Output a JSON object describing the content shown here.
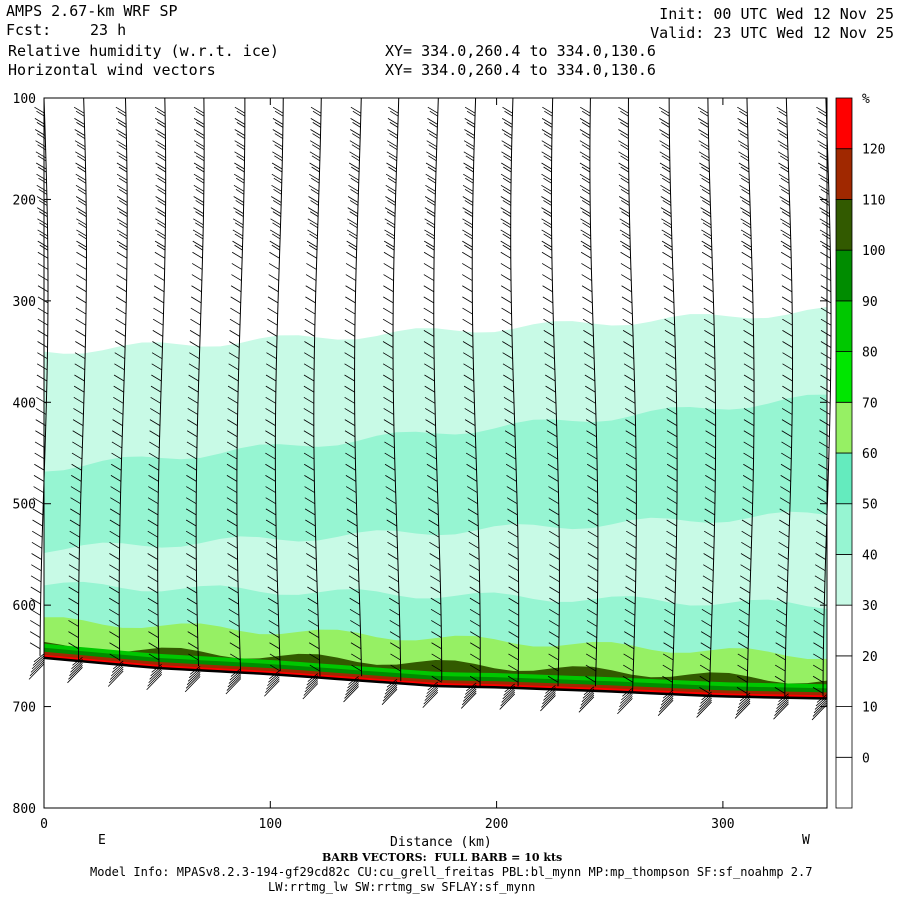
{
  "header": {
    "model": "AMPS 2.67-km WRF SP",
    "forecast_label": "Fcst:",
    "forecast_hours": "23 h",
    "field1": "Relative humidity (w.r.t. ice)",
    "field2": "Horizontal wind vectors",
    "xy1": "XY= 334.0,260.4 to 334.0,130.6",
    "xy2": "XY= 334.0,260.4 to 334.0,130.6",
    "init": "Init: 00 UTC Wed 12 Nov 25",
    "valid": "Valid: 23 UTC Wed 12 Nov 25"
  },
  "footer": {
    "barb_note": "BARB VECTORS:  FULL BARB = 10 kts",
    "model_info": "Model Info: MPASv8.2.3-194-gf29cd82c CU:cu_grell_freitas PBL:bl_mynn MP:mp_thompson SF:sf_noahmp 2.7",
    "model_info2": "LW:rrtmg_lw SW:rrtmg_sw SFLAY:sf_mynn"
  },
  "colors": {
    "rh_levels": [
      "#ffffff",
      "#ffffff",
      "#ffffff",
      "#ffffff",
      "#c8fae6",
      "#96f5d2",
      "#64ebbe",
      "#96f064",
      "#00e600",
      "#00c800",
      "#008c00",
      "#325a00",
      "#a02800",
      "#dc1e00",
      "#ff0000"
    ]
  },
  "chart_data": {
    "type": "cross-section",
    "xlabel": "Distance (km)",
    "xticks": [
      0,
      100,
      200,
      300
    ],
    "xlim": [
      0,
      346
    ],
    "left_end_label": "E",
    "right_end_label": "W",
    "yticks": [
      100,
      200,
      300,
      400,
      500,
      600,
      700,
      800
    ],
    "ylim": [
      800,
      100
    ],
    "ylabel": "",
    "colorbar": {
      "unit": "%",
      "levels": [
        0,
        10,
        20,
        30,
        40,
        50,
        60,
        70,
        80,
        90,
        100,
        110,
        120
      ]
    },
    "terrain_surface_hPa": {
      "x": [
        0,
        50,
        100,
        150,
        175,
        200,
        250,
        300,
        346
      ],
      "p": [
        652,
        662,
        668,
        676,
        680,
        681,
        685,
        690,
        692
      ]
    },
    "rh_bands": [
      {
        "range": "30-40",
        "top_hPa_left": 350,
        "top_hPa_right": 310
      },
      {
        "range": "40-50",
        "top_hPa_left": 465,
        "top_hPa_right": 395
      },
      {
        "range": "30-40",
        "top_hPa_left": 545,
        "top_hPa_right": 510
      },
      {
        "range": "40-50",
        "top_hPa_left": 580,
        "top_hPa_right": 600
      },
      {
        "range": "60-90",
        "top_hPa_left": 615,
        "top_hPa_right": 650
      },
      {
        "range": "100-120",
        "top_hPa_left": 640,
        "top_hPa_right": 675
      }
    ],
    "barb_columns_km": [
      0,
      17,
      35,
      52,
      69,
      87,
      104,
      121,
      139,
      156,
      174,
      191,
      208,
      226,
      243,
      260,
      278,
      295,
      312,
      329,
      346
    ]
  }
}
